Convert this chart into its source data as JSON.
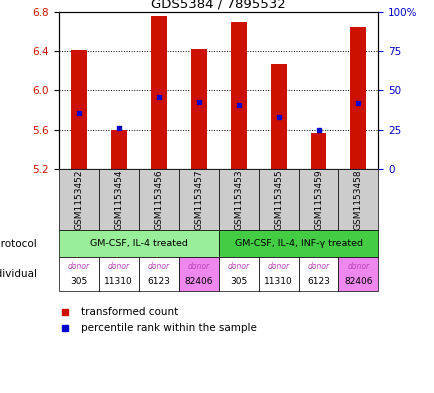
{
  "title": "GDS5384 / 7895532",
  "samples": [
    "GSM1153452",
    "GSM1153454",
    "GSM1153456",
    "GSM1153457",
    "GSM1153453",
    "GSM1153455",
    "GSM1153459",
    "GSM1153458"
  ],
  "bar_values": [
    6.41,
    5.6,
    6.76,
    6.42,
    6.7,
    6.27,
    5.57,
    6.65
  ],
  "bar_bottom": 5.2,
  "percentile_values": [
    5.77,
    5.62,
    5.93,
    5.88,
    5.85,
    5.73,
    5.6,
    5.87
  ],
  "ylim": [
    5.2,
    6.8
  ],
  "yticks": [
    5.2,
    5.6,
    6.0,
    6.4,
    6.8
  ],
  "right_ytick_labels": [
    "0",
    "25",
    "50",
    "75",
    "100%"
  ],
  "right_ytick_positions": [
    5.2,
    5.6,
    6.0,
    6.4,
    6.8
  ],
  "bar_color": "#cc1100",
  "percentile_color": "#0000cc",
  "protocol_groups": [
    {
      "label": "GM-CSF, IL-4 treated",
      "start": 0,
      "end": 4,
      "color": "#99ee99"
    },
    {
      "label": "GM-CSF, IL-4, INF-γ treated",
      "start": 4,
      "end": 8,
      "color": "#44cc44"
    }
  ],
  "individuals": [
    "305",
    "11310",
    "6123",
    "82406",
    "305",
    "11310",
    "6123",
    "82406"
  ],
  "individual_colors": [
    "#ffffff",
    "#ffffff",
    "#ffffff",
    "#ee88ee",
    "#ffffff",
    "#ffffff",
    "#ffffff",
    "#ee88ee"
  ],
  "sample_bg": "#cccccc",
  "left_label_color": "#cc1100",
  "right_label_color": "#0000cc",
  "figsize": [
    4.35,
    3.93
  ],
  "dpi": 100
}
